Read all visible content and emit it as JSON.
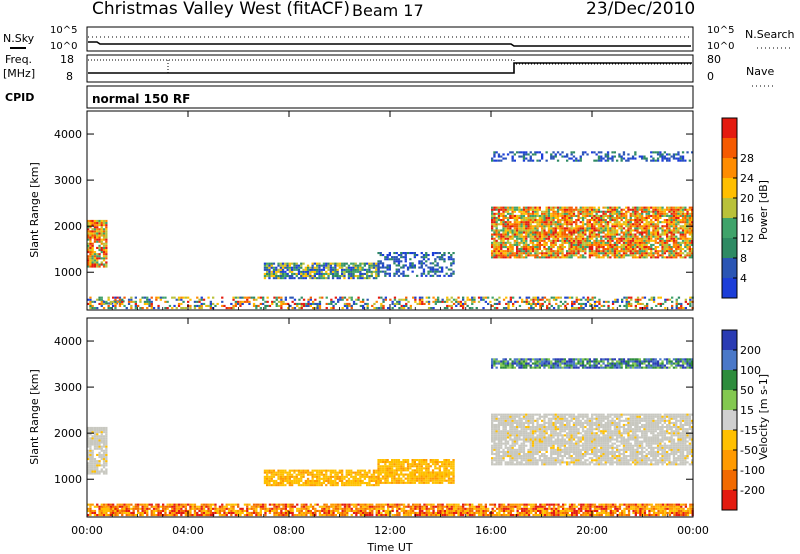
{
  "header": {
    "title": "Christmas Valley West (fitACF)",
    "beam": "Beam 17",
    "date": "23/Dec/2010"
  },
  "top_panels": {
    "nsky": {
      "label": "N.Sky",
      "ticks_left": [
        "10^5",
        "10^0"
      ],
      "ticks_right": [
        "10^5",
        "10^0"
      ],
      "right_label": "N.Search"
    },
    "freq": {
      "label": "Freq.",
      "unit": "[MHz]",
      "ticks_left": [
        "18",
        "8"
      ],
      "ticks_right": [
        "80",
        "0"
      ],
      "right_label": "Nave"
    },
    "cpid": {
      "label": "CPID",
      "value": "normal 150 RF"
    }
  },
  "axes": {
    "x_ticks": [
      "00:00",
      "04:00",
      "08:00",
      "12:00",
      "16:00",
      "20:00",
      "00:00"
    ],
    "x_label": "Time UT",
    "y_label": "Slant Range [km]",
    "y_ticks": [
      "1000",
      "2000",
      "3000",
      "4000"
    ]
  },
  "colors": {
    "power": [
      "#1c3ed8",
      "#2a55b4",
      "#2e8a63",
      "#3fa36a",
      "#b9c13a",
      "#ffbf00",
      "#ff8c00",
      "#f55a00",
      "#e41b10"
    ],
    "velocity": [
      "#2a3bb3",
      "#4a78c8",
      "#2d8c3c",
      "#83c850",
      "#cfcfcf",
      "#ffc000",
      "#ff9a00",
      "#f26a00",
      "#e41b10"
    ],
    "quiet_velocity": "#c8c8c0"
  },
  "chart_data": [
    {
      "type": "heatmap",
      "title": "",
      "xlabel": "Time UT",
      "ylabel": "Slant Range [km]",
      "xlim": [
        0,
        24
      ],
      "ylim": [
        180,
        4500
      ],
      "colorbar": {
        "label": "Power [dB]",
        "ticks": [
          "4",
          "8",
          "12",
          "16",
          "20",
          "24",
          "28"
        ],
        "range": [
          0,
          30
        ]
      },
      "regions": [
        {
          "t": [
            0.0,
            0.8
          ],
          "r": [
            1100,
            2100
          ],
          "level": "high"
        },
        {
          "t": [
            0.5,
            1.5
          ],
          "r": [
            300,
            360
          ],
          "level": "low"
        },
        {
          "t": [
            7.0,
            11.5
          ],
          "r": [
            850,
            1200
          ],
          "level": "medium"
        },
        {
          "t": [
            11.5,
            14.5
          ],
          "r": [
            900,
            1400
          ],
          "level": "low"
        },
        {
          "t": [
            0.0,
            24.0
          ],
          "r": [
            200,
            450
          ],
          "level": "variable"
        },
        {
          "t": [
            16.0,
            24.0
          ],
          "r": [
            1300,
            2400
          ],
          "level": "high"
        },
        {
          "t": [
            16.0,
            24.0
          ],
          "r": [
            3400,
            3600
          ],
          "level": "low"
        }
      ]
    },
    {
      "type": "heatmap",
      "title": "",
      "xlabel": "Time UT",
      "ylabel": "Slant Range [km]",
      "xlim": [
        0,
        24
      ],
      "ylim": [
        180,
        4500
      ],
      "colorbar": {
        "label": "Velocity [m s-1]",
        "ticks": [
          "200",
          "100",
          "50",
          "15",
          "-15",
          "-50",
          "-100",
          "-200"
        ],
        "range": [
          -250,
          250
        ]
      },
      "regions": [
        {
          "t": [
            0.0,
            0.8
          ],
          "r": [
            1100,
            2100
          ],
          "velocity": 0
        },
        {
          "t": [
            0.5,
            1.5
          ],
          "r": [
            300,
            360
          ],
          "velocity": -60
        },
        {
          "t": [
            7.0,
            11.5
          ],
          "r": [
            850,
            1200
          ],
          "velocity": -60
        },
        {
          "t": [
            11.5,
            14.5
          ],
          "r": [
            900,
            1400
          ],
          "velocity": -60
        },
        {
          "t": [
            0.0,
            24.0
          ],
          "r": [
            200,
            450
          ],
          "velocity": -100
        },
        {
          "t": [
            16.0,
            24.0
          ],
          "r": [
            1300,
            2400
          ],
          "velocity": 0
        },
        {
          "t": [
            16.0,
            24.0
          ],
          "r": [
            3400,
            3600
          ],
          "velocity": 60
        }
      ]
    }
  ]
}
